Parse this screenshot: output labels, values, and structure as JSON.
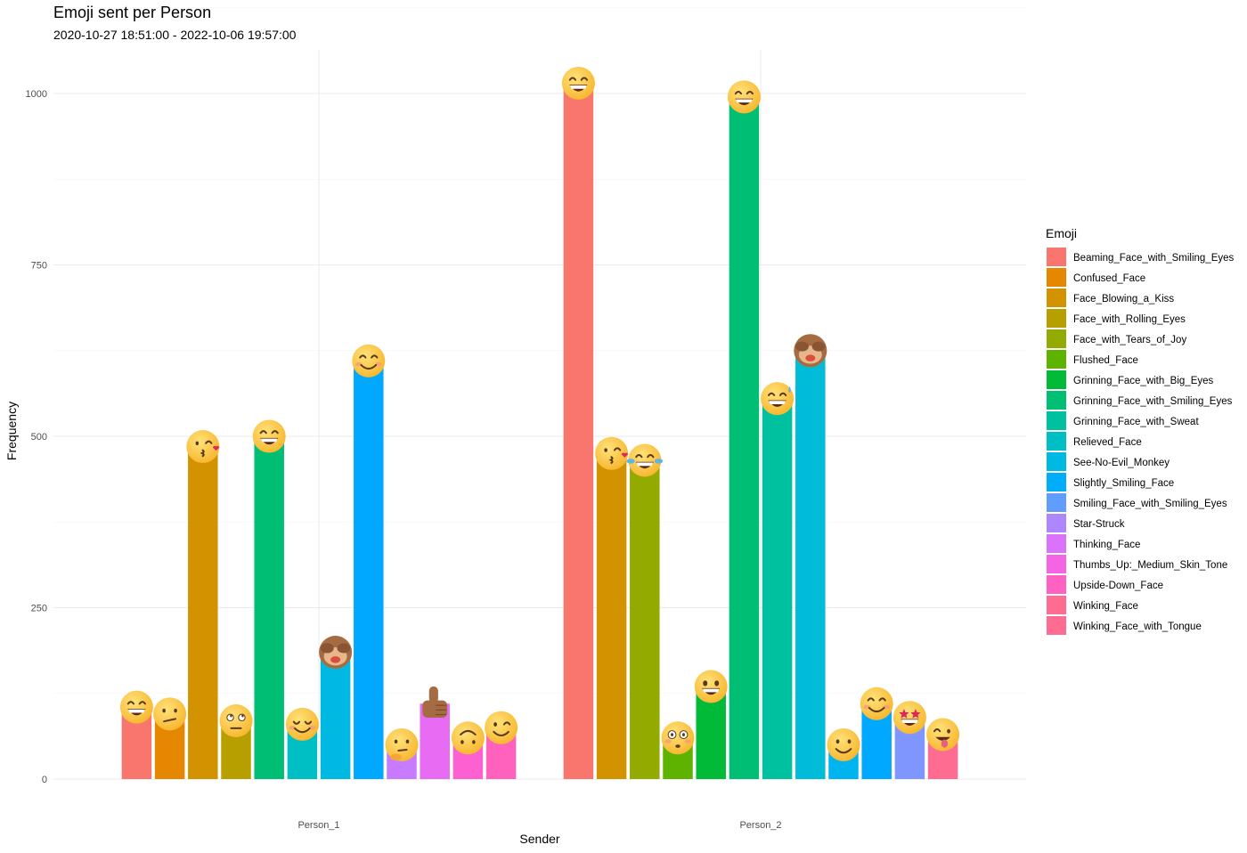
{
  "chart_data": {
    "type": "bar",
    "title": "Emoji sent per Person",
    "subtitle": "2020-10-27 18:51:00  -  2022-10-06 19:57:00",
    "xlabel": "Sender",
    "ylabel": "Frequency",
    "ylim": [
      0,
      1050
    ],
    "yticks": [
      0,
      250,
      500,
      750,
      1000
    ],
    "categories": [
      "Person_1",
      "Person_2"
    ],
    "legend_title": "Emoji",
    "legend": [
      {
        "name": "Beaming_Face_with_Smiling_Eyes",
        "color": "#F8766D",
        "face": "grin"
      },
      {
        "name": "Confused_Face",
        "color": "#E58700",
        "face": "confused"
      },
      {
        "name": "Face_Blowing_a_Kiss",
        "color": "#D39200",
        "face": "kiss"
      },
      {
        "name": "Face_with_Rolling_Eyes",
        "color": "#B79F00",
        "face": "roll"
      },
      {
        "name": "Face_with_Tears_of_Joy",
        "color": "#93AA00",
        "face": "tears"
      },
      {
        "name": "Flushed_Face",
        "color": "#5EB300",
        "face": "flushed"
      },
      {
        "name": "Grinning_Face_with_Big_Eyes",
        "color": "#00BA38",
        "face": "bigeyes"
      },
      {
        "name": "Grinning_Face_with_Smiling_Eyes",
        "color": "#00BF74",
        "face": "smileeyes"
      },
      {
        "name": "Grinning_Face_with_Sweat",
        "color": "#00C19F",
        "face": "sweat"
      },
      {
        "name": "Relieved_Face",
        "color": "#00BFC4",
        "face": "relieved"
      },
      {
        "name": "See-No-Evil_Monkey",
        "color": "#00B9E3",
        "face": "monkey"
      },
      {
        "name": "Slightly_Smiling_Face",
        "color": "#00ADFA",
        "face": "slight"
      },
      {
        "name": "Smiling_Face_with_Smiling_Eyes",
        "color": "#619CFF",
        "face": "blush"
      },
      {
        "name": "Star-Struck",
        "color": "#AE87FF",
        "face": "star"
      },
      {
        "name": "Thinking_Face",
        "color": "#DB72FB",
        "face": "thinking"
      },
      {
        "name": "Thumbs_Up:_Medium_Skin_Tone",
        "color": "#F564E3",
        "face": "thumbs"
      },
      {
        "name": "Upside-Down_Face",
        "color": "#FF61C3",
        "face": "upside"
      },
      {
        "name": "Winking_Face",
        "color": "#FF6C91",
        "face": "wink"
      },
      {
        "name": "Winking_Face_with_Tongue",
        "color": "#FF6C91",
        "face": "tongue"
      }
    ],
    "series": [
      {
        "sender": "Person_1",
        "bars": [
          {
            "emoji": "Beaming_Face_with_Smiling_Eyes",
            "value": 105,
            "color": "#F8766D",
            "face": "grin"
          },
          {
            "emoji": "Confused_Face",
            "value": 95,
            "color": "#E58700",
            "face": "confused"
          },
          {
            "emoji": "Face_Blowing_a_Kiss",
            "value": 485,
            "color": "#D39200",
            "face": "kiss"
          },
          {
            "emoji": "Face_with_Rolling_Eyes",
            "value": 85,
            "color": "#B79F00",
            "face": "roll"
          },
          {
            "emoji": "Grinning_Face_with_Smiling_Eyes",
            "value": 500,
            "color": "#00BF74",
            "face": "smileeyes"
          },
          {
            "emoji": "Relieved_Face",
            "value": 80,
            "color": "#00BFC4",
            "face": "relieved"
          },
          {
            "emoji": "See-No-Evil_Monkey",
            "value": 185,
            "color": "#00B9E3",
            "face": "monkey"
          },
          {
            "emoji": "Smiling_Face_with_Smiling_Eyes",
            "value": 610,
            "color": "#00A9FF",
            "face": "blush"
          },
          {
            "emoji": "Thinking_Face",
            "value": 50,
            "color": "#C77CFF",
            "face": "thinking"
          },
          {
            "emoji": "Thumbs_Up:_Medium_Skin_Tone",
            "value": 110,
            "color": "#E76BF3",
            "face": "thumbs"
          },
          {
            "emoji": "Upside-Down_Face",
            "value": 60,
            "color": "#FD61D1",
            "face": "upside"
          },
          {
            "emoji": "Winking_Face",
            "value": 75,
            "color": "#FF62BC",
            "face": "wink"
          }
        ]
      },
      {
        "sender": "Person_2",
        "bars": [
          {
            "emoji": "Beaming_Face_with_Smiling_Eyes",
            "value": 1015,
            "color": "#F8766D",
            "face": "grin"
          },
          {
            "emoji": "Face_Blowing_a_Kiss",
            "value": 475,
            "color": "#D39200",
            "face": "kiss"
          },
          {
            "emoji": "Face_with_Tears_of_Joy",
            "value": 465,
            "color": "#93AA00",
            "face": "tears"
          },
          {
            "emoji": "Flushed_Face",
            "value": 60,
            "color": "#5EB300",
            "face": "flushed"
          },
          {
            "emoji": "Grinning_Face_with_Big_Eyes",
            "value": 135,
            "color": "#00BA38",
            "face": "bigeyes"
          },
          {
            "emoji": "Grinning_Face_with_Smiling_Eyes",
            "value": 995,
            "color": "#00BF74",
            "face": "smileeyes"
          },
          {
            "emoji": "Grinning_Face_with_Sweat",
            "value": 555,
            "color": "#00C19F",
            "face": "sweat"
          },
          {
            "emoji": "See-No-Evil_Monkey",
            "value": 625,
            "color": "#00BCD8",
            "face": "monkey"
          },
          {
            "emoji": "Slightly_Smiling_Face",
            "value": 50,
            "color": "#00B4F0",
            "face": "slight"
          },
          {
            "emoji": "Smiling_Face_with_Smiling_Eyes",
            "value": 110,
            "color": "#00A9FF",
            "face": "blush"
          },
          {
            "emoji": "Star-Struck",
            "value": 90,
            "color": "#7F96FF",
            "face": "star"
          },
          {
            "emoji": "Winking_Face_with_Tongue",
            "value": 65,
            "color": "#FF6C91",
            "face": "tongue"
          }
        ]
      }
    ]
  }
}
